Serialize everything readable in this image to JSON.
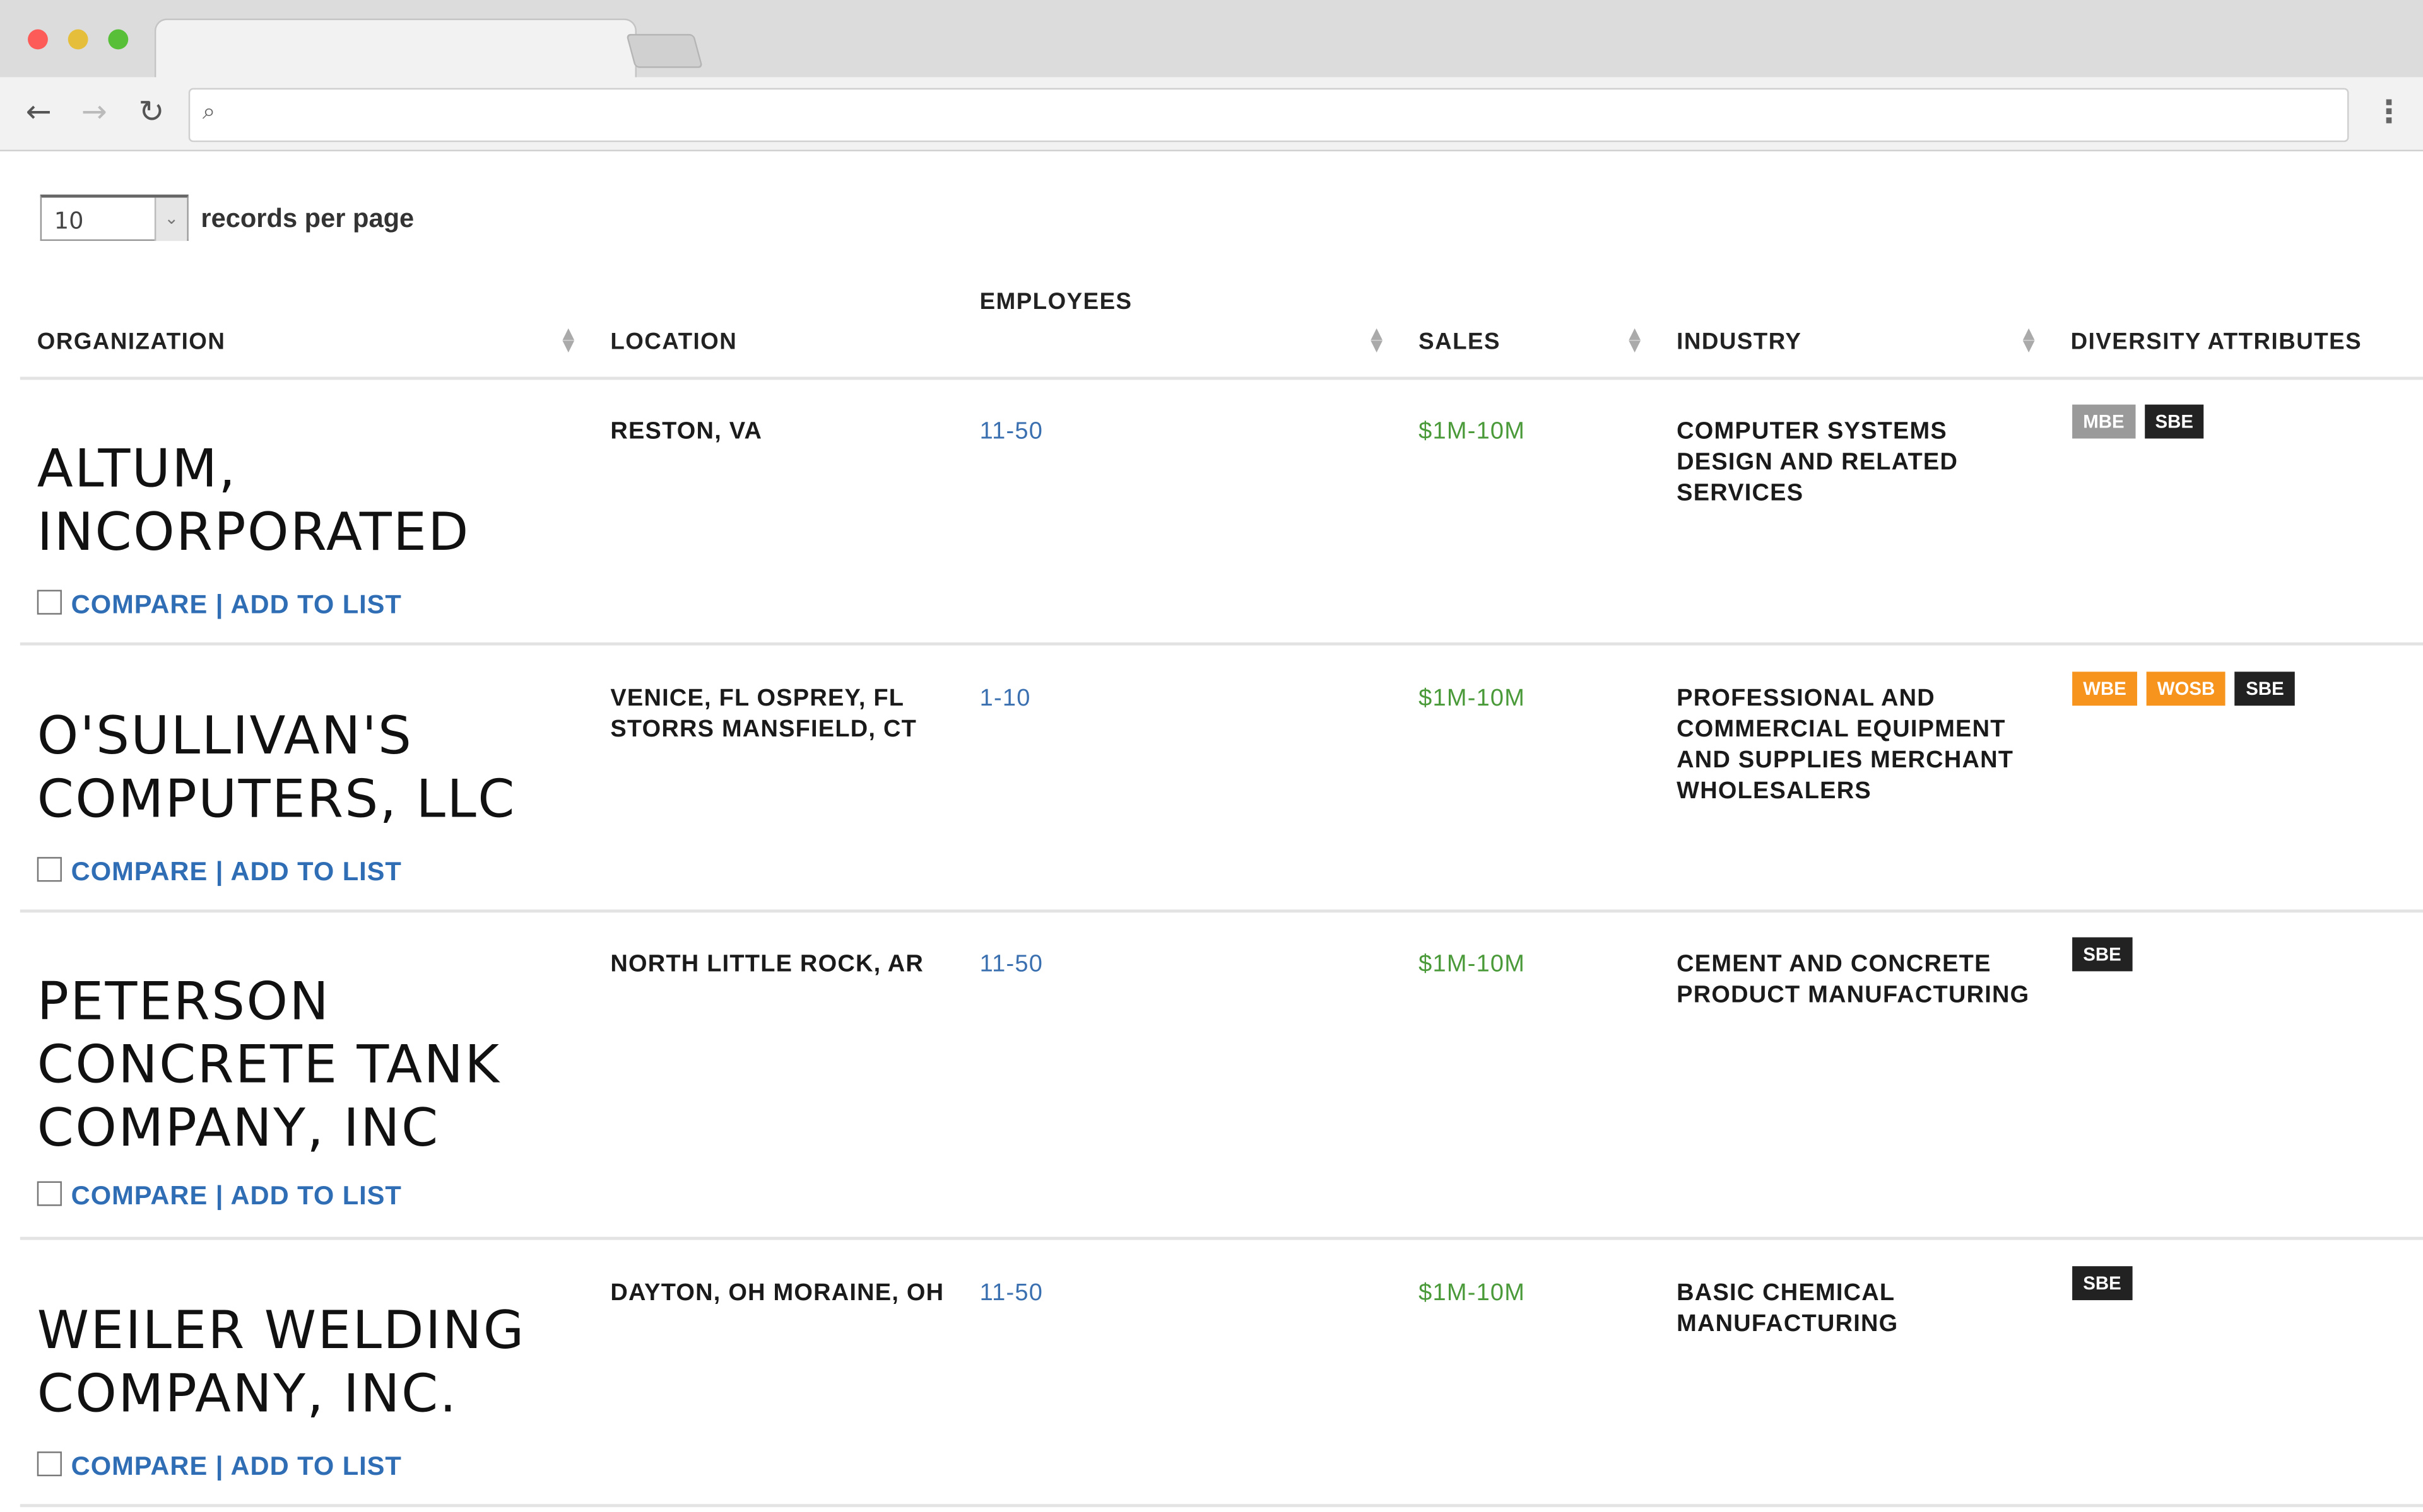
{
  "browser": {
    "tab_title": "",
    "address": ""
  },
  "controls": {
    "per_page_value": "10",
    "per_page_label": "records per page"
  },
  "columns": {
    "organization": "ORGANIZATION",
    "location": "LOCATION",
    "employees": "EMPLOYEES",
    "sales": "SALES",
    "industry": "INDUSTRY",
    "diversity": "DIVERSITY ATTRIBUTES"
  },
  "actions": {
    "compare": "COMPARE",
    "separator": "|",
    "add_to_list": "ADD TO LIST"
  },
  "badge_colors": {
    "MBE": "#9a9a9a",
    "SBE": "#222222",
    "WBE": "#f7941d",
    "WOSB": "#f7941d"
  },
  "rows": [
    {
      "name": "ALTUM, INCORPORATED",
      "location": "RESTON, VA",
      "employees": "11-50",
      "sales": "$1M-10M",
      "industry": "COMPUTER SYSTEMS DESIGN AND RELATED SERVICES",
      "badges": [
        "MBE",
        "SBE"
      ]
    },
    {
      "name": "O'SULLIVAN'S COMPUTERS, LLC",
      "location": "VENICE, FL OSPREY, FL STORRS MANSFIELD, CT",
      "employees": "1-10",
      "sales": "$1M-10M",
      "industry": "PROFESSIONAL AND COMMERCIAL EQUIPMENT AND SUPPLIES MERCHANT WHOLESALERS",
      "badges": [
        "WBE",
        "WOSB",
        "SBE"
      ]
    },
    {
      "name": "PETERSON CONCRETE TANK COMPANY, INC",
      "location": "NORTH LITTLE ROCK, AR",
      "employees": "11-50",
      "sales": "$1M-10M",
      "industry": "CEMENT AND CONCRETE PRODUCT MANUFACTURING",
      "badges": [
        "SBE"
      ]
    },
    {
      "name": "WEILER WELDING COMPANY, INC.",
      "location": "DAYTON, OH MORAINE, OH",
      "employees": "11-50",
      "sales": "$1M-10M",
      "industry": "BASIC CHEMICAL MANUFACTURING",
      "badges": [
        "SBE"
      ]
    }
  ]
}
